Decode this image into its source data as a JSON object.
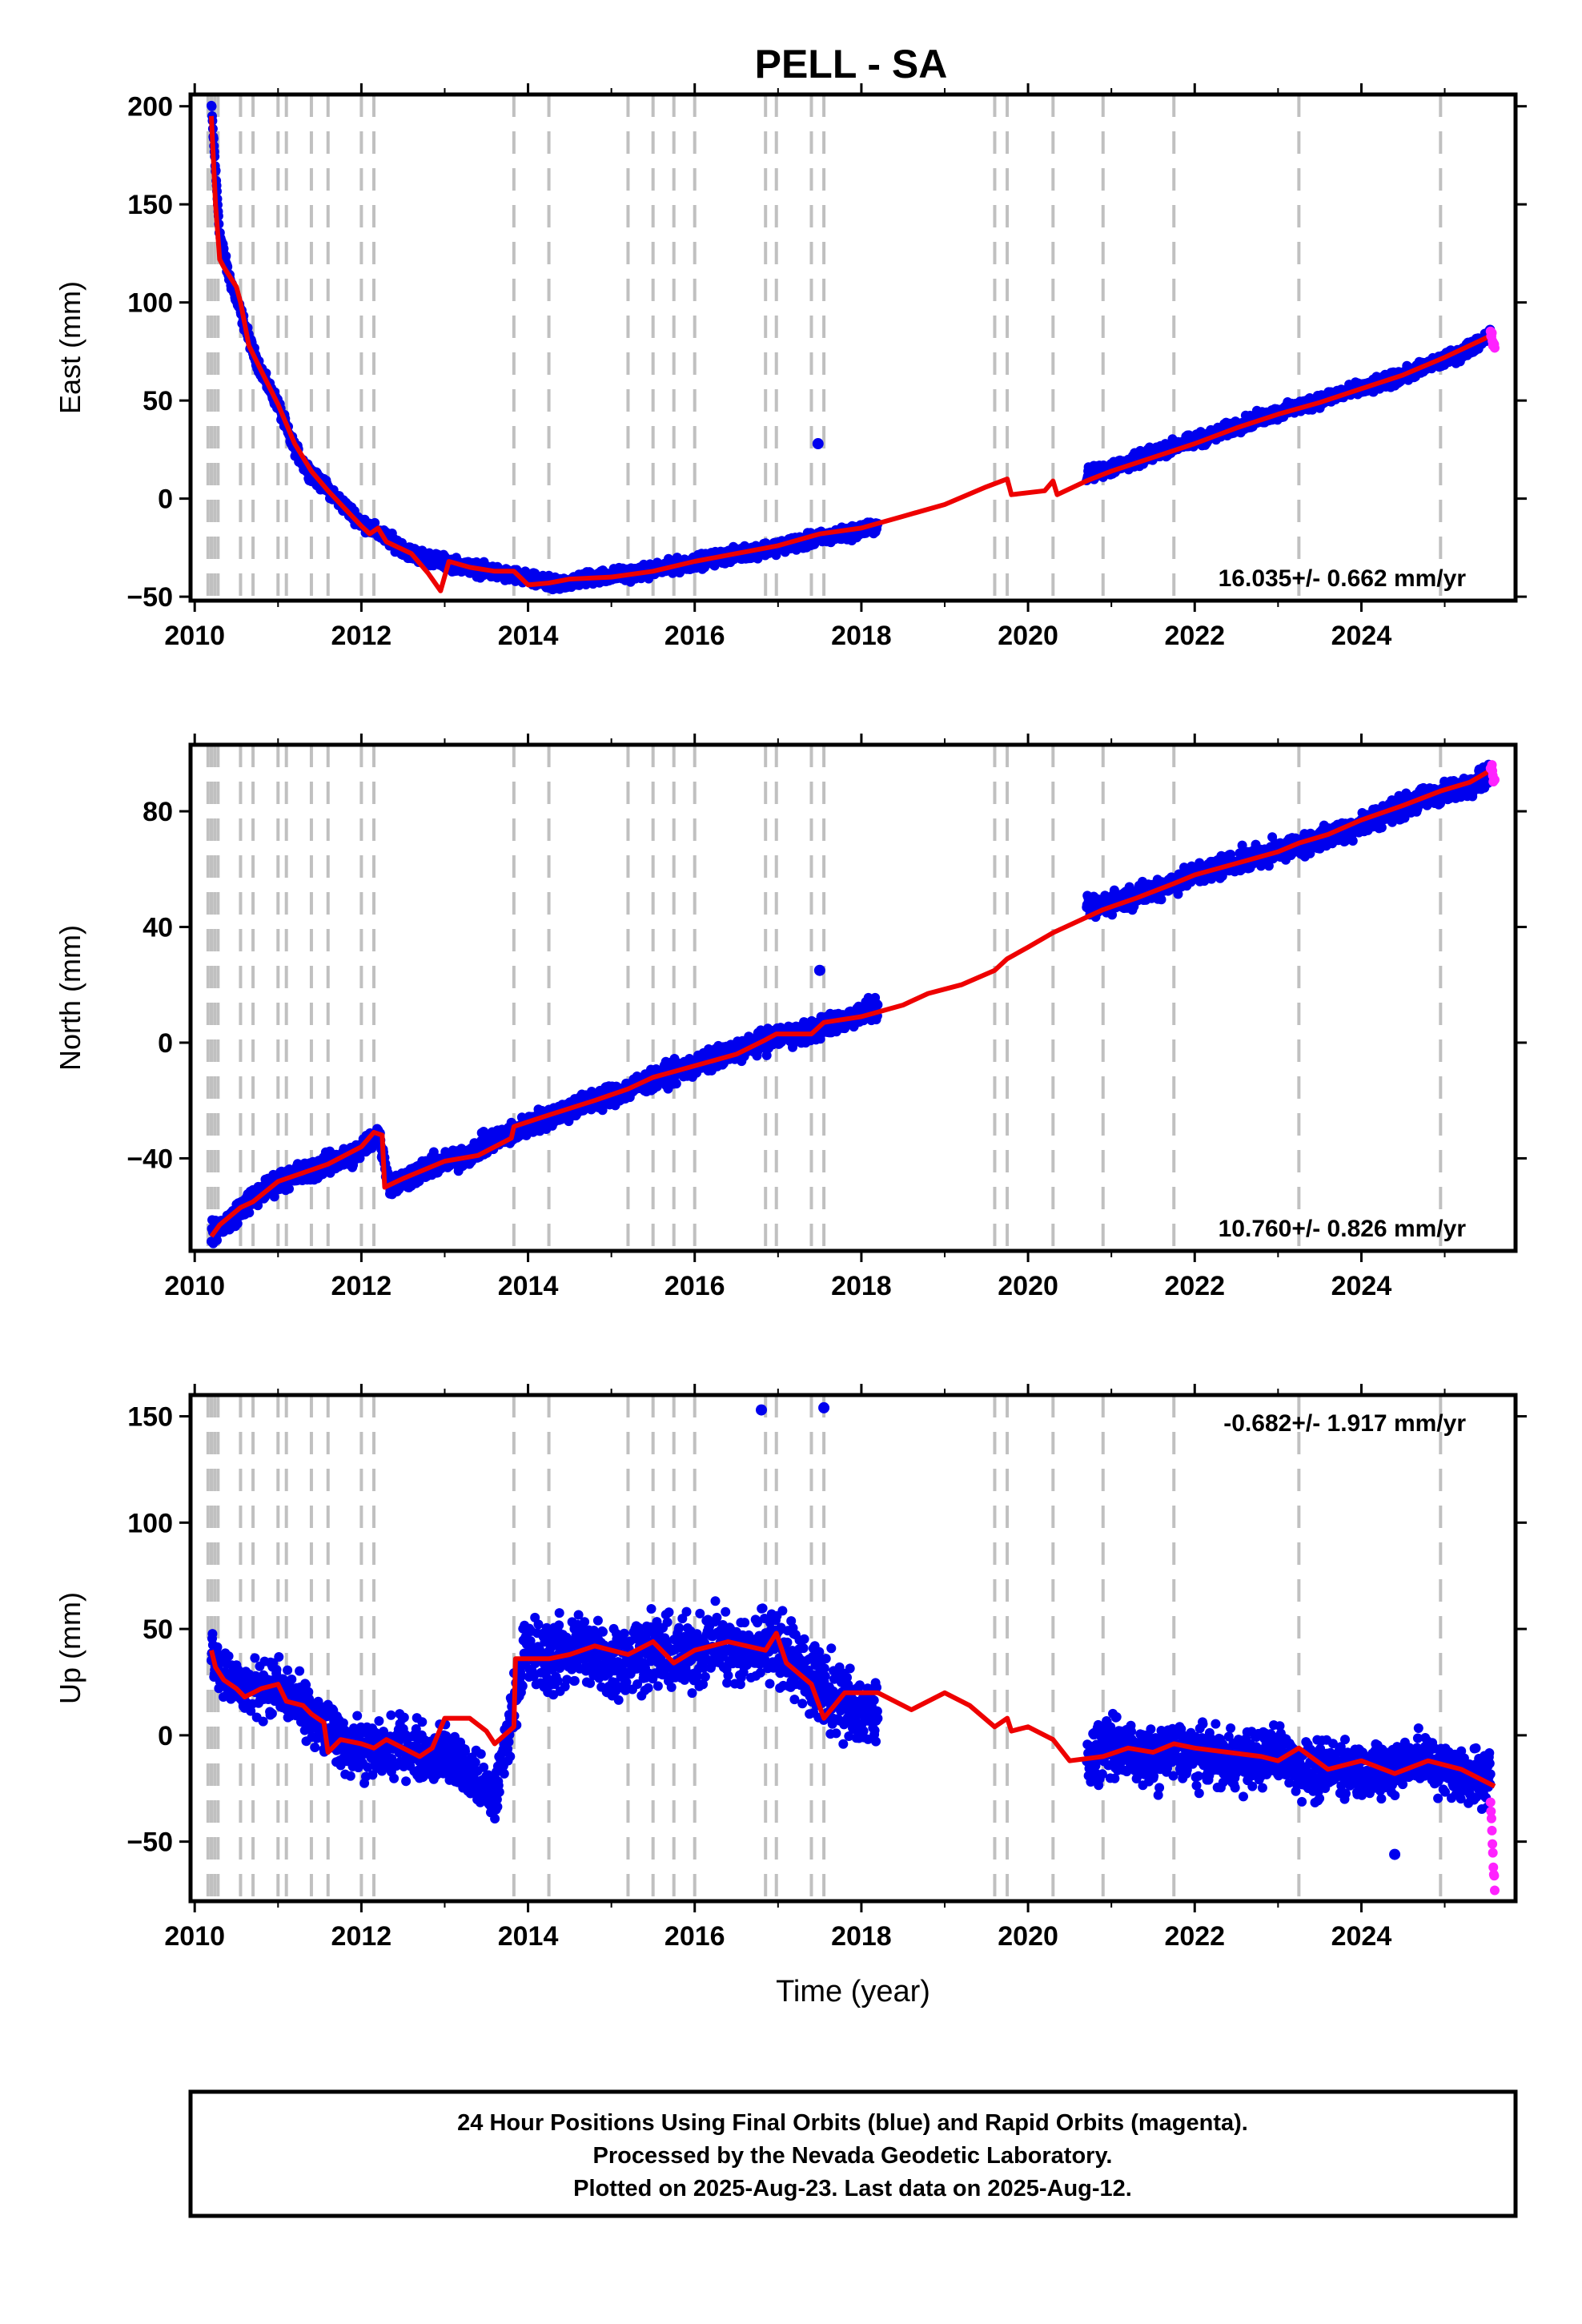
{
  "title": "PELL - SA",
  "colors": {
    "final_orbits": "#0000ee",
    "rapid_orbits": "#ff22ff",
    "model": "#ee0000",
    "breaks": "#c0c0c0",
    "frame": "#000000"
  },
  "footer": {
    "line1": "24 Hour Positions Using Final Orbits (blue) and Rapid Orbits (magenta).",
    "line2": "Processed by the Nevada Geodetic Laboratory.",
    "line3": "Plotted on 2025-Aug-23. Last data on 2025-Aug-12."
  },
  "chart_data": [
    {
      "type": "scatter",
      "component": "east",
      "ylabel": "East (mm)",
      "xlabel": "",
      "xlim": [
        2009.95,
        2025.85
      ],
      "ylim": [
        -52,
        206
      ],
      "xticks": [
        "2010",
        "2012",
        "2014",
        "2016",
        "2018",
        "2020",
        "2022",
        "2024"
      ],
      "yticks": [
        "200",
        "150",
        "100",
        "50",
        "0",
        "−50"
      ],
      "rate_label": "16.035+/- 0.662 mm/yr",
      "rate_position": "bottom-right",
      "grid": false,
      "breaks": [
        2010.16,
        2010.2,
        2010.24,
        2010.28,
        2010.55,
        2010.7,
        2011.0,
        2011.1,
        2011.4,
        2011.6,
        2012.0,
        2012.15,
        2013.83,
        2014.25,
        2015.2,
        2015.5,
        2015.75,
        2016.0,
        2016.85,
        2016.98,
        2017.4,
        2017.55,
        2019.6,
        2019.75,
        2020.3,
        2020.9,
        2021.75,
        2023.25,
        2024.95
      ],
      "final_series": [
        [
          2010.2,
          200
        ],
        [
          2010.3,
          135
        ],
        [
          2010.4,
          115
        ],
        [
          2010.55,
          95
        ],
        [
          2010.7,
          75
        ],
        [
          2010.85,
          60
        ],
        [
          2011.0,
          48
        ],
        [
          2011.15,
          30
        ],
        [
          2011.3,
          18
        ],
        [
          2011.45,
          10
        ],
        [
          2011.6,
          5
        ],
        [
          2011.75,
          -2
        ],
        [
          2012.0,
          -12
        ],
        [
          2012.3,
          -20
        ],
        [
          2012.6,
          -28
        ],
        [
          2012.95,
          -32
        ],
        [
          2013.4,
          -36
        ],
        [
          2013.9,
          -40
        ],
        [
          2014.3,
          -44
        ],
        [
          2014.8,
          -40
        ],
        [
          2015.3,
          -38
        ],
        [
          2015.8,
          -34
        ],
        [
          2016.3,
          -30
        ],
        [
          2016.8,
          -26
        ],
        [
          2017.3,
          -22
        ],
        [
          2017.8,
          -18
        ],
        [
          2018.2,
          -14
        ],
        [
          2020.7,
          12
        ],
        [
          2021.2,
          18
        ],
        [
          2021.7,
          26
        ],
        [
          2022.2,
          32
        ],
        [
          2022.7,
          40
        ],
        [
          2023.2,
          46
        ],
        [
          2023.7,
          53
        ],
        [
          2024.2,
          58
        ],
        [
          2024.7,
          66
        ],
        [
          2025.2,
          74
        ],
        [
          2025.55,
          84
        ]
      ],
      "rapid_series": [
        [
          2025.55,
          85
        ],
        [
          2025.58,
          80
        ],
        [
          2025.6,
          76
        ]
      ],
      "outliers": [
        [
          2017.48,
          28
        ]
      ],
      "model_line": [
        [
          2010.2,
          195
        ],
        [
          2010.25,
          150
        ],
        [
          2010.3,
          122
        ],
        [
          2010.35,
          118
        ],
        [
          2010.5,
          108
        ],
        [
          2010.55,
          100
        ],
        [
          2010.65,
          78
        ],
        [
          2010.8,
          65
        ],
        [
          2011.0,
          48
        ],
        [
          2011.2,
          28
        ],
        [
          2011.4,
          14
        ],
        [
          2011.6,
          4
        ],
        [
          2011.8,
          -5
        ],
        [
          2012.0,
          -14
        ],
        [
          2012.1,
          -18
        ],
        [
          2012.2,
          -15
        ],
        [
          2012.3,
          -22
        ],
        [
          2012.6,
          -28
        ],
        [
          2012.8,
          -38
        ],
        [
          2012.95,
          -47
        ],
        [
          2013.05,
          -32
        ],
        [
          2013.3,
          -35
        ],
        [
          2013.6,
          -37
        ],
        [
          2013.83,
          -37
        ],
        [
          2014.0,
          -44
        ],
        [
          2014.25,
          -43
        ],
        [
          2014.5,
          -41
        ],
        [
          2015.0,
          -40
        ],
        [
          2015.5,
          -37
        ],
        [
          2016.0,
          -32
        ],
        [
          2016.5,
          -28
        ],
        [
          2017.0,
          -24
        ],
        [
          2017.5,
          -18
        ],
        [
          2018.0,
          -15
        ],
        [
          2018.5,
          -9
        ],
        [
          2019.0,
          -3
        ],
        [
          2019.5,
          6
        ],
        [
          2019.75,
          10
        ],
        [
          2019.8,
          2
        ],
        [
          2020.2,
          4
        ],
        [
          2020.3,
          9
        ],
        [
          2020.35,
          2
        ],
        [
          2020.7,
          9
        ],
        [
          2021.0,
          14
        ],
        [
          2021.5,
          21
        ],
        [
          2022.0,
          28
        ],
        [
          2022.5,
          36
        ],
        [
          2023.0,
          43
        ],
        [
          2023.5,
          49
        ],
        [
          2024.0,
          56
        ],
        [
          2024.5,
          63
        ],
        [
          2025.0,
          72
        ],
        [
          2025.6,
          84
        ]
      ]
    },
    {
      "type": "scatter",
      "component": "north",
      "ylabel": "North (mm)",
      "xlabel": "",
      "xlim": [
        2009.95,
        2025.85
      ],
      "ylim": [
        -72,
        103
      ],
      "xticks": [
        "2010",
        "2012",
        "2014",
        "2016",
        "2018",
        "2020",
        "2022",
        "2024"
      ],
      "yticks": [
        "80",
        "40",
        "0",
        "−40"
      ],
      "rate_label": "10.760+/- 0.826 mm/yr",
      "rate_position": "bottom-right",
      "grid": false,
      "breaks": [
        2010.16,
        2010.2,
        2010.24,
        2010.28,
        2010.55,
        2010.7,
        2011.0,
        2011.1,
        2011.4,
        2011.6,
        2012.0,
        2012.15,
        2013.83,
        2014.25,
        2015.2,
        2015.5,
        2015.75,
        2016.0,
        2016.85,
        2016.98,
        2017.4,
        2017.55,
        2019.6,
        2019.75,
        2020.3,
        2020.9,
        2021.75,
        2023.25,
        2024.95
      ],
      "final_series": [
        [
          2010.2,
          -66
        ],
        [
          2010.4,
          -62
        ],
        [
          2010.6,
          -56
        ],
        [
          2010.8,
          -52
        ],
        [
          2011.0,
          -48
        ],
        [
          2011.3,
          -45
        ],
        [
          2011.6,
          -42
        ],
        [
          2011.9,
          -39
        ],
        [
          2012.1,
          -34
        ],
        [
          2012.2,
          -31
        ],
        [
          2012.35,
          -50
        ],
        [
          2012.6,
          -46
        ],
        [
          2012.9,
          -42
        ],
        [
          2013.2,
          -40
        ],
        [
          2013.5,
          -35
        ],
        [
          2013.9,
          -30
        ],
        [
          2014.2,
          -26
        ],
        [
          2014.6,
          -22
        ],
        [
          2015.0,
          -18
        ],
        [
          2015.4,
          -14
        ],
        [
          2015.8,
          -10
        ],
        [
          2016.2,
          -6
        ],
        [
          2016.6,
          -2
        ],
        [
          2017.0,
          2
        ],
        [
          2017.4,
          4
        ],
        [
          2017.8,
          8
        ],
        [
          2018.2,
          12
        ],
        [
          2020.7,
          46
        ],
        [
          2021.2,
          50
        ],
        [
          2021.7,
          55
        ],
        [
          2022.2,
          60
        ],
        [
          2022.7,
          64
        ],
        [
          2023.2,
          68
        ],
        [
          2023.7,
          72
        ],
        [
          2024.2,
          78
        ],
        [
          2024.7,
          84
        ],
        [
          2025.2,
          88
        ],
        [
          2025.55,
          93
        ]
      ],
      "rapid_series": [
        [
          2025.55,
          96
        ],
        [
          2025.58,
          92
        ],
        [
          2025.6,
          90
        ]
      ],
      "outliers": [
        [
          2017.5,
          25
        ]
      ],
      "model_line": [
        [
          2010.2,
          -67
        ],
        [
          2010.3,
          -63
        ],
        [
          2010.55,
          -57
        ],
        [
          2010.7,
          -55
        ],
        [
          2011.0,
          -48
        ],
        [
          2011.1,
          -47
        ],
        [
          2011.4,
          -44
        ],
        [
          2011.6,
          -42
        ],
        [
          2012.0,
          -36
        ],
        [
          2012.15,
          -31
        ],
        [
          2012.25,
          -32
        ],
        [
          2012.28,
          -50
        ],
        [
          2012.5,
          -47
        ],
        [
          2013.0,
          -41
        ],
        [
          2013.4,
          -39
        ],
        [
          2013.8,
          -33
        ],
        [
          2013.83,
          -29
        ],
        [
          2014.25,
          -25
        ],
        [
          2014.8,
          -20
        ],
        [
          2015.2,
          -16
        ],
        [
          2015.5,
          -12
        ],
        [
          2015.75,
          -10
        ],
        [
          2016.0,
          -8
        ],
        [
          2016.5,
          -4
        ],
        [
          2016.85,
          1
        ],
        [
          2016.98,
          3
        ],
        [
          2017.4,
          3
        ],
        [
          2017.55,
          7
        ],
        [
          2018.0,
          9
        ],
        [
          2018.5,
          13
        ],
        [
          2018.8,
          17
        ],
        [
          2019.2,
          20
        ],
        [
          2019.6,
          25
        ],
        [
          2019.75,
          29
        ],
        [
          2020.0,
          33
        ],
        [
          2020.3,
          38
        ],
        [
          2020.6,
          42
        ],
        [
          2020.9,
          46
        ],
        [
          2021.3,
          50
        ],
        [
          2021.75,
          55
        ],
        [
          2022.0,
          58
        ],
        [
          2022.5,
          62
        ],
        [
          2023.0,
          66
        ],
        [
          2023.25,
          69
        ],
        [
          2023.6,
          72
        ],
        [
          2024.0,
          77
        ],
        [
          2024.5,
          82
        ],
        [
          2024.95,
          87
        ],
        [
          2025.3,
          90
        ],
        [
          2025.6,
          95
        ]
      ]
    },
    {
      "type": "scatter",
      "component": "up",
      "ylabel": "Up (mm)",
      "xlabel": "Time (year)",
      "xlim": [
        2009.95,
        2025.85
      ],
      "ylim": [
        -78,
        160
      ],
      "xticks": [
        "2010",
        "2012",
        "2014",
        "2016",
        "2018",
        "2020",
        "2022",
        "2024"
      ],
      "yticks": [
        "150",
        "100",
        "50",
        "0",
        "−50"
      ],
      "rate_label": "-0.682+/- 1.917 mm/yr",
      "rate_position": "top-right",
      "grid": false,
      "breaks": [
        2010.16,
        2010.2,
        2010.24,
        2010.28,
        2010.55,
        2010.7,
        2011.0,
        2011.1,
        2011.4,
        2011.6,
        2012.0,
        2012.15,
        2013.83,
        2014.25,
        2015.2,
        2015.5,
        2015.75,
        2016.0,
        2016.85,
        2016.98,
        2017.4,
        2017.55,
        2019.6,
        2019.75,
        2020.3,
        2020.9,
        2021.75,
        2023.25,
        2024.95
      ],
      "final_series": [
        [
          2010.2,
          40
        ],
        [
          2010.4,
          28
        ],
        [
          2010.6,
          20
        ],
        [
          2010.8,
          24
        ],
        [
          2011.0,
          22
        ],
        [
          2011.3,
          12
        ],
        [
          2011.6,
          2
        ],
        [
          2011.9,
          -6
        ],
        [
          2012.2,
          -8
        ],
        [
          2012.5,
          -4
        ],
        [
          2012.8,
          -10
        ],
        [
          2013.0,
          -8
        ],
        [
          2013.6,
          -30
        ],
        [
          2013.95,
          38
        ],
        [
          2014.3,
          36
        ],
        [
          2014.6,
          42
        ],
        [
          2015.0,
          34
        ],
        [
          2015.4,
          40
        ],
        [
          2015.8,
          36
        ],
        [
          2016.2,
          44
        ],
        [
          2016.6,
          38
        ],
        [
          2016.9,
          46
        ],
        [
          2017.2,
          34
        ],
        [
          2017.6,
          20
        ],
        [
          2017.9,
          14
        ],
        [
          2018.2,
          8
        ],
        [
          2020.7,
          -10
        ],
        [
          2021.0,
          -4
        ],
        [
          2021.4,
          -12
        ],
        [
          2021.8,
          -8
        ],
        [
          2022.2,
          -10
        ],
        [
          2022.6,
          -12
        ],
        [
          2023.0,
          -8
        ],
        [
          2023.4,
          -18
        ],
        [
          2023.8,
          -14
        ],
        [
          2024.2,
          -18
        ],
        [
          2024.6,
          -10
        ],
        [
          2025.0,
          -16
        ],
        [
          2025.55,
          -20
        ]
      ],
      "rapid_series": [
        [
          2025.55,
          -30
        ],
        [
          2025.57,
          -48
        ],
        [
          2025.58,
          -60
        ],
        [
          2025.6,
          -72
        ]
      ],
      "outliers": [
        [
          2016.8,
          153
        ],
        [
          2017.55,
          154
        ],
        [
          2024.4,
          -56
        ]
      ],
      "model_line": [
        [
          2010.2,
          40
        ],
        [
          2010.25,
          32
        ],
        [
          2010.35,
          26
        ],
        [
          2010.5,
          22
        ],
        [
          2010.6,
          18
        ],
        [
          2010.8,
          22
        ],
        [
          2011.0,
          24
        ],
        [
          2011.1,
          16
        ],
        [
          2011.3,
          14
        ],
        [
          2011.4,
          10
        ],
        [
          2011.55,
          6
        ],
        [
          2011.6,
          -8
        ],
        [
          2011.75,
          -2
        ],
        [
          2012.0,
          -4
        ],
        [
          2012.15,
          -6
        ],
        [
          2012.3,
          -2
        ],
        [
          2012.5,
          -6
        ],
        [
          2012.7,
          -10
        ],
        [
          2012.85,
          -6
        ],
        [
          2013.0,
          8
        ],
        [
          2013.3,
          8
        ],
        [
          2013.5,
          2
        ],
        [
          2013.6,
          -4
        ],
        [
          2013.83,
          4
        ],
        [
          2013.85,
          36
        ],
        [
          2014.25,
          36
        ],
        [
          2014.5,
          38
        ],
        [
          2014.8,
          42
        ],
        [
          2015.2,
          38
        ],
        [
          2015.5,
          44
        ],
        [
          2015.75,
          34
        ],
        [
          2016.0,
          40
        ],
        [
          2016.4,
          44
        ],
        [
          2016.85,
          40
        ],
        [
          2016.98,
          48
        ],
        [
          2017.1,
          34
        ],
        [
          2017.4,
          24
        ],
        [
          2017.55,
          8
        ],
        [
          2017.8,
          20
        ],
        [
          2018.2,
          20
        ],
        [
          2018.6,
          12
        ],
        [
          2019.0,
          20
        ],
        [
          2019.3,
          14
        ],
        [
          2019.6,
          4
        ],
        [
          2019.75,
          8
        ],
        [
          2019.8,
          2
        ],
        [
          2020.0,
          4
        ],
        [
          2020.3,
          -2
        ],
        [
          2020.5,
          -12
        ],
        [
          2020.9,
          -10
        ],
        [
          2021.2,
          -6
        ],
        [
          2021.5,
          -8
        ],
        [
          2021.75,
          -4
        ],
        [
          2022.0,
          -6
        ],
        [
          2022.4,
          -8
        ],
        [
          2022.8,
          -10
        ],
        [
          2023.0,
          -12
        ],
        [
          2023.25,
          -6
        ],
        [
          2023.6,
          -16
        ],
        [
          2024.0,
          -12
        ],
        [
          2024.4,
          -18
        ],
        [
          2024.8,
          -12
        ],
        [
          2025.2,
          -16
        ],
        [
          2025.6,
          -24
        ]
      ]
    }
  ]
}
